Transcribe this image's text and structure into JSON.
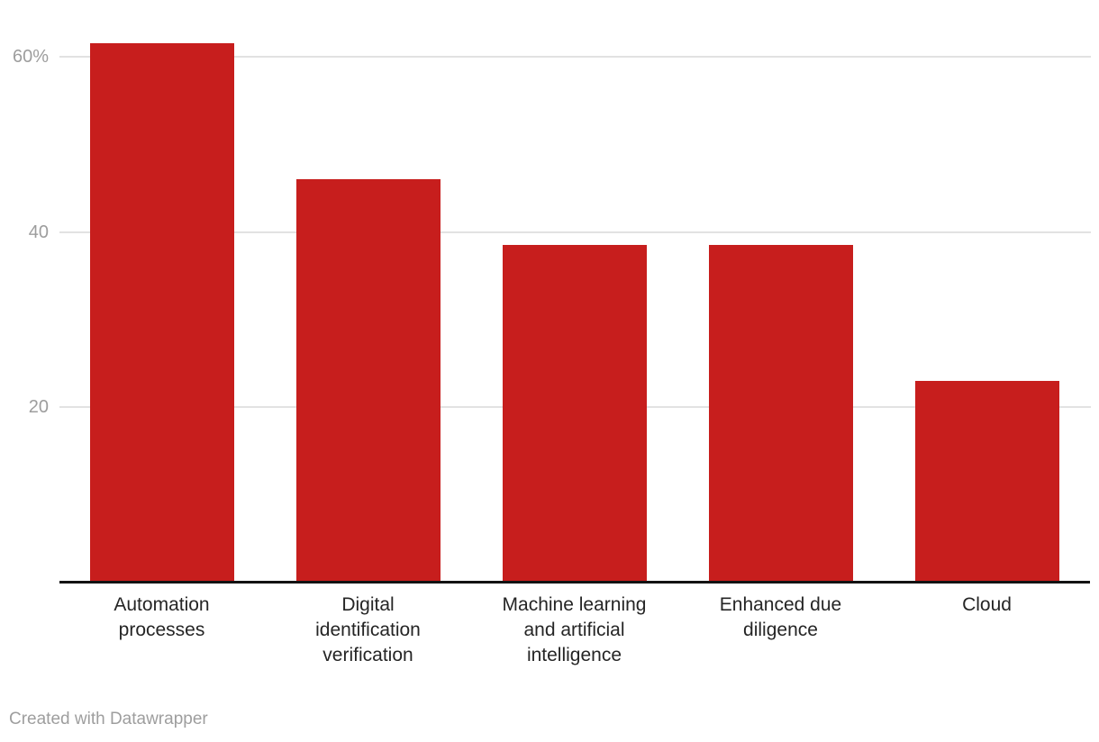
{
  "chart_data": {
    "type": "bar",
    "title": "",
    "xlabel": "",
    "ylabel": "",
    "unit": "%",
    "categories": [
      "Automation processes",
      "Digital identification verification",
      "Machine learning and artificial intelligence",
      "Enhanced due diligence",
      "Cloud"
    ],
    "category_lines": [
      [
        "Automation",
        "processes"
      ],
      [
        "Digital",
        "identification",
        "verification"
      ],
      [
        "Machine learning",
        "and artificial",
        "intelligence"
      ],
      [
        "Enhanced due",
        "diligence"
      ],
      [
        "Cloud"
      ]
    ],
    "values": [
      61.5,
      46,
      38.5,
      38.5,
      23
    ],
    "ylim": [
      0,
      64.4
    ],
    "yticks": [
      {
        "value": 20,
        "label": "20"
      },
      {
        "value": 40,
        "label": "40"
      },
      {
        "value": 60,
        "label": "60%"
      }
    ],
    "grid": true,
    "legend_position": "none",
    "bar_color": "#c71e1d"
  },
  "colors": {
    "bar": "#c71e1d",
    "gridline": "#e2e2e2",
    "axis_line": "#131313",
    "tick_text": "#9d9d9d",
    "label_text": "#252525",
    "attribution_text": "#9e9e9e",
    "background": "#ffffff"
  },
  "footer": {
    "attribution": "Created with Datawrapper"
  }
}
